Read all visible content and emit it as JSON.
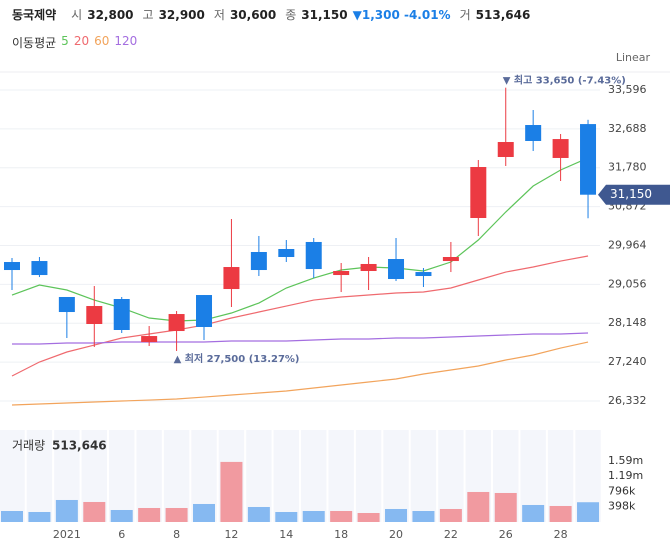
{
  "header": {
    "name": "동국제약",
    "items": [
      {
        "label": "시",
        "value": "32,800"
      },
      {
        "label": "고",
        "value": "32,900"
      },
      {
        "label": "저",
        "value": "30,600"
      },
      {
        "label": "종",
        "value": "31,150"
      }
    ],
    "change": "▼1,300 -4.01%",
    "volume_label": "거",
    "volume_value": "513,646"
  },
  "chart_data": {
    "type": "candlestick",
    "scale_label": "Linear",
    "ma_title": "이동평균",
    "categories": [
      null,
      null,
      "2021",
      null,
      "6",
      null,
      "8",
      null,
      "12",
      null,
      "14",
      null,
      "18",
      null,
      "20",
      null,
      "22",
      null,
      "26",
      null,
      "28",
      null
    ],
    "open": [
      29578,
      29601,
      28761,
      28130,
      28714,
      27709,
      27966,
      28807,
      28947,
      29812,
      29882,
      30046,
      29274,
      29368,
      29648,
      29344,
      29601,
      30606,
      32031,
      32778,
      32008,
      32800
    ],
    "high": [
      29672,
      29695,
      28761,
      29017,
      28761,
      28083,
      28433,
      28807,
      30583,
      30186,
      30092,
      30139,
      29555,
      29695,
      30139,
      29438,
      30046,
      31961,
      33650,
      33129,
      32568,
      32900
    ],
    "low": [
      28924,
      29227,
      27803,
      27593,
      27920,
      27616,
      27500,
      27756,
      28527,
      29251,
      29578,
      29204,
      28877,
      28924,
      29134,
      28994,
      29344,
      30186,
      31821,
      32171,
      31470,
      30600
    ],
    "close": [
      29391,
      29274,
      28410,
      28550,
      27990,
      27849,
      28363,
      28060,
      29461,
      29391,
      29695,
      29414,
      29368,
      29532,
      29181,
      29251,
      29695,
      31797,
      32381,
      32405,
      32450,
      31150
    ],
    "up_color": "#ec3a42",
    "down_color": "#1b7fe6",
    "up_volume_color": "#f19aa0",
    "down_volume_color": "#86b9f1",
    "ylim": [
      25771,
      34063
    ],
    "yticks": [
      {
        "value": 33596,
        "label": "33,596"
      },
      {
        "value": 32688,
        "label": "32,688"
      },
      {
        "value": 31780,
        "label": "31,780"
      },
      {
        "value": 30872,
        "label": "30,872"
      },
      {
        "value": 29964,
        "label": "29,964"
      },
      {
        "value": 29056,
        "label": "29,056"
      },
      {
        "value": 28148,
        "label": "28,148"
      },
      {
        "value": 27240,
        "label": "27,240"
      },
      {
        "value": 26332,
        "label": "26,332"
      }
    ],
    "grid": true,
    "price_tag": "31,150",
    "max_label": "▼ 최고 33,650 (-7.43%)",
    "min_label": "▲ 최저 27,500 (13.27%)",
    "series": [
      {
        "name": "5",
        "color": "#5dc45a",
        "values": [
          28807,
          29041,
          28924,
          28690,
          28504,
          28270,
          28200,
          28223,
          28387,
          28620,
          28971,
          29204,
          29391,
          29461,
          29438,
          29368,
          29578,
          30092,
          30746,
          31353,
          31727,
          32008
        ]
      },
      {
        "name": "20",
        "color": "#ef6a6f",
        "values": [
          26915,
          27242,
          27476,
          27639,
          27803,
          27896,
          27990,
          28106,
          28270,
          28410,
          28550,
          28690,
          28760,
          28807,
          28854,
          28877,
          28971,
          29158,
          29344,
          29461,
          29601,
          29718
        ]
      },
      {
        "name": "60",
        "color": "#f2a45c",
        "values": [
          26238,
          26261,
          26285,
          26308,
          26331,
          26354,
          26378,
          26424,
          26471,
          26518,
          26565,
          26635,
          26705,
          26775,
          26845,
          26962,
          27055,
          27149,
          27289,
          27406,
          27569,
          27709
        ]
      },
      {
        "name": "120",
        "color": "#a46ee0",
        "values": [
          27663,
          27663,
          27686,
          27686,
          27709,
          27709,
          27709,
          27709,
          27733,
          27733,
          27733,
          27756,
          27779,
          27779,
          27803,
          27803,
          27826,
          27850,
          27873,
          27896,
          27896,
          27920
        ]
      }
    ],
    "volume_title": "거래량",
    "volume_value_label": "513,646",
    "volume": [
      286000,
      260000,
      572000,
      520000,
      312000,
      364000,
      364000,
      468000,
      1561000,
      390000,
      260000,
      286000,
      286000,
      234000,
      338000,
      286000,
      338000,
      780000,
      754000,
      442000,
      416000,
      513646
    ],
    "vlim": [
      0,
      2390000
    ],
    "vticks": [
      {
        "value": 1590000,
        "label": "1.59m"
      },
      {
        "value": 1190000,
        "label": "1.19m"
      },
      {
        "value": 796000,
        "label": "796k"
      },
      {
        "value": 398000,
        "label": "398k"
      }
    ]
  }
}
